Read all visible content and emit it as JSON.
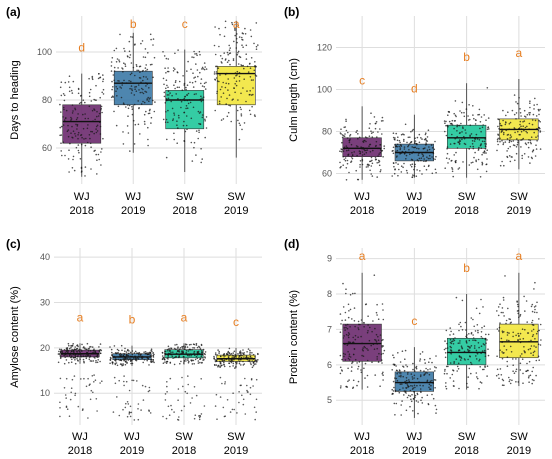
{
  "chart_data": [
    {
      "panel": "(a)",
      "type": "boxplot",
      "ylabel": "Days to heading",
      "ylim": [
        45,
        115
      ],
      "yticks": [
        60,
        80,
        100
      ],
      "categories": [
        {
          "line1": "WJ",
          "line2": "2018",
          "color": "#6b2a6e",
          "q1": 62,
          "median": 71,
          "q3": 78,
          "whisker_low": 48,
          "whisker_high": 91,
          "sig": "d"
        },
        {
          "line1": "WJ",
          "line2": "2019",
          "color": "#3b79a6",
          "q1": 78,
          "median": 87,
          "q3": 92,
          "whisker_low": 58,
          "whisker_high": 108,
          "sig": "b"
        },
        {
          "line1": "SW",
          "line2": "2018",
          "color": "#1fc79a",
          "q1": 68,
          "median": 80,
          "q3": 84,
          "whisker_low": 50,
          "whisker_high": 101,
          "sig": "c"
        },
        {
          "line1": "SW",
          "line2": "2019",
          "color": "#f2e63c",
          "q1": 78,
          "median": 91,
          "q3": 94,
          "whisker_low": 56,
          "whisker_high": 113,
          "sig": "a"
        }
      ]
    },
    {
      "panel": "(b)",
      "type": "boxplot",
      "ylabel": "Culm length (cm)",
      "ylim": [
        55,
        135
      ],
      "yticks": [
        60,
        80,
        100,
        120
      ],
      "categories": [
        {
          "line1": "WJ",
          "line2": "2018",
          "color": "#6b2a6e",
          "q1": 68,
          "median": 72,
          "q3": 77,
          "whisker_low": 57,
          "whisker_high": 92,
          "sig": "c"
        },
        {
          "line1": "WJ",
          "line2": "2019",
          "color": "#3b79a6",
          "q1": 66,
          "median": 70,
          "q3": 74,
          "whisker_low": 58,
          "whisker_high": 88,
          "sig": "d"
        },
        {
          "line1": "SW",
          "line2": "2018",
          "color": "#1fc79a",
          "q1": 72,
          "median": 77,
          "q3": 83,
          "whisker_low": 58,
          "whisker_high": 103,
          "sig": "b"
        },
        {
          "line1": "SW",
          "line2": "2019",
          "color": "#f2e63c",
          "q1": 76,
          "median": 81,
          "q3": 86,
          "whisker_low": 62,
          "whisker_high": 105,
          "sig": "a"
        }
      ]
    },
    {
      "panel": "(c)",
      "type": "boxplot",
      "ylabel": "Amylose content (%)",
      "ylim": [
        3,
        42
      ],
      "yticks": [
        10,
        20,
        30,
        40
      ],
      "categories": [
        {
          "line1": "WJ",
          "line2": "2018",
          "color": "#6b2a6e",
          "q1": 18,
          "median": 18.7,
          "q3": 19.5,
          "whisker_low": 16.5,
          "whisker_high": 21,
          "sig": "a"
        },
        {
          "line1": "WJ",
          "line2": "2019",
          "color": "#3b79a6",
          "q1": 17.4,
          "median": 18,
          "q3": 18.7,
          "whisker_low": 16,
          "whisker_high": 20.5,
          "sig": "b"
        },
        {
          "line1": "SW",
          "line2": "2018",
          "color": "#1fc79a",
          "q1": 17.8,
          "median": 18.6,
          "q3": 19.6,
          "whisker_low": 16.3,
          "whisker_high": 21,
          "sig": "a"
        },
        {
          "line1": "SW",
          "line2": "2019",
          "color": "#f2e63c",
          "q1": 17,
          "median": 17.6,
          "q3": 18.4,
          "whisker_low": 15.5,
          "whisker_high": 20,
          "sig": "c"
        }
      ]
    },
    {
      "panel": "(d)",
      "type": "boxplot",
      "ylabel": "Protein content (%)",
      "ylim": [
        4.3,
        9.3
      ],
      "yticks": [
        5,
        6,
        7,
        8,
        9
      ],
      "categories": [
        {
          "line1": "WJ",
          "line2": "2018",
          "color": "#6b2a6e",
          "q1": 6.1,
          "median": 6.6,
          "q3": 7.15,
          "whisker_low": 5.3,
          "whisker_high": 8.6,
          "sig": "a"
        },
        {
          "line1": "WJ",
          "line2": "2019",
          "color": "#3b79a6",
          "q1": 5.25,
          "median": 5.5,
          "q3": 5.8,
          "whisker_low": 4.5,
          "whisker_high": 6.5,
          "sig": "c"
        },
        {
          "line1": "SW",
          "line2": "2018",
          "color": "#1fc79a",
          "q1": 6.0,
          "median": 6.35,
          "q3": 6.75,
          "whisker_low": 5.3,
          "whisker_high": 8.0,
          "sig": "b"
        },
        {
          "line1": "SW",
          "line2": "2019",
          "color": "#f2e63c",
          "q1": 6.2,
          "median": 6.65,
          "q3": 7.15,
          "whisker_low": 5.4,
          "whisker_high": 8.6,
          "sig": "a"
        }
      ]
    }
  ]
}
